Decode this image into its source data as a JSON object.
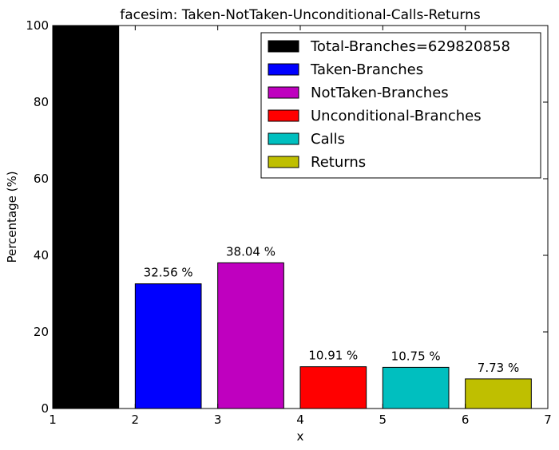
{
  "chart_data": {
    "type": "bar",
    "title": "facesim: Taken-NotTaken-Unconditional-Calls-Returns",
    "xlabel": "x",
    "ylabel": "Percentage (%)",
    "xlim": [
      1,
      7
    ],
    "ylim": [
      0,
      100
    ],
    "xticks": [
      1,
      2,
      3,
      4,
      5,
      6,
      7
    ],
    "yticks": [
      0,
      20,
      40,
      60,
      80,
      100
    ],
    "grid": false,
    "legend_position": "top-right",
    "bar_width": 0.8,
    "bars": [
      {
        "name": "Total-Branches=629820858",
        "x": 1,
        "value": 100,
        "color": "#000000",
        "label": ""
      },
      {
        "name": "Taken-Branches",
        "x": 2,
        "value": 32.56,
        "color": "#0000ff",
        "label": "32.56 %"
      },
      {
        "name": "NotTaken-Branches",
        "x": 3,
        "value": 38.04,
        "color": "#bf00bf",
        "label": "38.04 %"
      },
      {
        "name": "Unconditional-Branches",
        "x": 4,
        "value": 10.91,
        "color": "#ff0000",
        "label": "10.91 %"
      },
      {
        "name": "Calls",
        "x": 5,
        "value": 10.75,
        "color": "#00bfbf",
        "label": "10.75 %"
      },
      {
        "name": "Returns",
        "x": 6,
        "value": 7.73,
        "color": "#bfbf00",
        "label": "7.73 %"
      }
    ]
  }
}
